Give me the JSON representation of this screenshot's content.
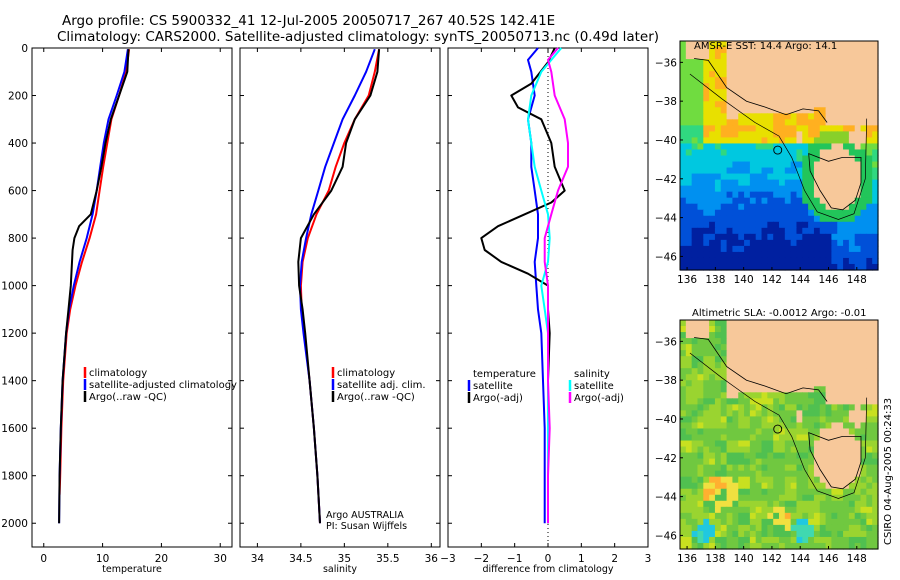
{
  "title": {
    "line1": "Argo profile: CS 5900332_41 12-Jul-2005 20050717_267 40.52S 142.41E",
    "line2": "Climatology: CARS2000. Satellite-adjusted climatology: synTS_20050713.nc (0.49d later)"
  },
  "chart_data": [
    {
      "type": "line",
      "name": "temperature-profile",
      "xlabel": "temperature",
      "ylabel": "",
      "xlim": [
        -2,
        32
      ],
      "ylim": [
        2100,
        0
      ],
      "xticks": [
        0,
        10,
        20,
        30
      ],
      "yticks": [
        0,
        200,
        400,
        600,
        800,
        1000,
        1200,
        1400,
        1600,
        1800,
        2000
      ],
      "legend": [
        "climatology",
        "satellite-adjusted climatology",
        "Argo(..raw -QC)"
      ],
      "series": [
        {
          "name": "climatology",
          "color": "#ff0000",
          "y": [
            5,
            100,
            200,
            300,
            400,
            500,
            600,
            700,
            800,
            900,
            1000,
            1100,
            1200,
            1400,
            1600,
            1800,
            1880
          ],
          "x": [
            14.5,
            14.0,
            12.8,
            11.5,
            10.8,
            10.1,
            9.5,
            8.9,
            7.8,
            6.5,
            5.4,
            4.5,
            3.9,
            3.3,
            3.0,
            2.8,
            2.7
          ]
        },
        {
          "name": "satellite-adjusted climatology",
          "color": "#0000ff",
          "y": [
            5,
            100,
            200,
            300,
            400,
            500,
            600,
            700,
            800,
            900,
            1000,
            1100,
            1200,
            1400,
            1600,
            1800,
            2000
          ],
          "x": [
            14.3,
            13.7,
            12.4,
            11.0,
            10.2,
            9.6,
            9.0,
            8.3,
            7.3,
            6.1,
            5.1,
            4.3,
            3.8,
            3.2,
            2.9,
            2.7,
            2.6
          ]
        },
        {
          "name": "Argo(..raw -QC)",
          "color": "#000000",
          "y": [
            5,
            50,
            100,
            200,
            300,
            400,
            500,
            600,
            700,
            750,
            800,
            850,
            900,
            1000,
            1100,
            1200,
            1400,
            1600,
            1800,
            2000
          ],
          "x": [
            14.4,
            14.3,
            14.2,
            12.8,
            11.4,
            10.5,
            9.8,
            9.0,
            8.0,
            6.0,
            5.2,
            4.9,
            4.8,
            4.6,
            4.2,
            3.8,
            3.2,
            2.9,
            2.7,
            2.6
          ]
        }
      ]
    },
    {
      "type": "line",
      "name": "salinity-profile",
      "xlabel": "salinity",
      "ylabel": "",
      "xlim": [
        33.8,
        36.1
      ],
      "ylim": [
        2100,
        0
      ],
      "xticks": [
        34,
        34.5,
        35,
        35.5,
        36
      ],
      "yticks": [
        0,
        200,
        400,
        600,
        800,
        1000,
        1200,
        1400,
        1600,
        1800,
        2000
      ],
      "legend": [
        "climatology",
        "satellite adj. clim.",
        "Argo(..raw -QC)"
      ],
      "annotations": [
        "Argo AUSTRALIA",
        "PI: Susan Wijffels"
      ],
      "series": [
        {
          "name": "climatology",
          "color": "#ff0000",
          "y": [
            5,
            100,
            200,
            300,
            400,
            500,
            600,
            700,
            800,
            900,
            1000,
            1100,
            1200,
            1400,
            1600,
            1800,
            2000
          ],
          "x": [
            35.4,
            35.35,
            35.28,
            35.12,
            35.0,
            34.9,
            34.82,
            34.68,
            34.58,
            34.52,
            34.5,
            34.51,
            34.54,
            34.6,
            34.65,
            34.69,
            34.72
          ]
        },
        {
          "name": "satellite adj. clim.",
          "color": "#0000ff",
          "y": [
            5,
            100,
            200,
            300,
            400,
            500,
            600,
            700,
            800,
            900,
            1000,
            1100,
            1200,
            1400,
            1600,
            1800,
            2000
          ],
          "x": [
            35.35,
            35.25,
            35.12,
            34.98,
            34.88,
            34.78,
            34.7,
            34.62,
            34.56,
            34.51,
            34.49,
            34.5,
            34.53,
            34.6,
            34.65,
            34.69,
            34.72
          ]
        },
        {
          "name": "Argo(..raw -QC)",
          "color": "#000000",
          "y": [
            5,
            100,
            200,
            300,
            400,
            500,
            600,
            700,
            800,
            900,
            1000,
            1100,
            1200,
            1400,
            1600,
            1800,
            2000
          ],
          "x": [
            35.4,
            35.38,
            35.3,
            35.12,
            35.02,
            34.98,
            34.85,
            34.65,
            34.5,
            34.47,
            34.48,
            34.52,
            34.55,
            34.6,
            34.65,
            34.69,
            34.72
          ]
        }
      ]
    },
    {
      "type": "line",
      "name": "difference-profile",
      "xlabel": "difference from climatology",
      "ylabel": "",
      "xlim": [
        -3,
        3
      ],
      "ylim": [
        2100,
        0
      ],
      "xticks": [
        -3,
        -2,
        -1,
        0,
        1,
        2,
        3
      ],
      "yticks": [
        0,
        200,
        400,
        600,
        800,
        1000,
        1200,
        1400,
        1600,
        1800,
        2000
      ],
      "legend": [
        "temperature",
        "satellite",
        "Argo(-adj)",
        "salinity",
        "satellite",
        "Argo(-adj)"
      ],
      "series": [
        {
          "name": "temperature satellite",
          "color": "#0000ff",
          "y": [
            0,
            50,
            100,
            200,
            300,
            400,
            500,
            600,
            700,
            800,
            900,
            1000,
            1100,
            1200,
            1400,
            1600,
            1800,
            2000
          ],
          "x": [
            -0.3,
            -0.6,
            -0.5,
            -0.4,
            -0.6,
            -0.5,
            -0.5,
            -0.4,
            -0.3,
            -0.3,
            -0.4,
            -0.35,
            -0.3,
            -0.2,
            -0.15,
            -0.1,
            -0.1,
            -0.1
          ]
        },
        {
          "name": "temperature Argo(-adj)",
          "color": "#000000",
          "y": [
            0,
            60,
            150,
            200,
            250,
            300,
            400,
            500,
            600,
            650,
            700,
            750,
            800,
            850,
            900,
            950,
            1000,
            1100,
            1200,
            1400,
            1600,
            1800,
            2000
          ],
          "x": [
            0.2,
            0.0,
            -0.5,
            -1.1,
            -0.9,
            -0.2,
            0.1,
            0.2,
            0.5,
            0.1,
            -0.7,
            -1.5,
            -2.0,
            -1.9,
            -1.4,
            -0.6,
            0.0,
            0.0,
            0.05,
            0.0,
            0.0,
            0.0,
            0.0
          ]
        },
        {
          "name": "salinity satellite",
          "color": "#00ffff",
          "y": [
            0,
            100,
            200,
            300,
            400,
            500,
            600,
            700,
            800,
            900,
            1000,
            1100,
            1200,
            1400,
            1600,
            1800,
            2000
          ],
          "x": [
            0.4,
            -0.2,
            -0.5,
            -0.6,
            -0.5,
            -0.4,
            -0.2,
            0.0,
            0.05,
            0.0,
            -0.2,
            -0.1,
            0.0,
            0.0,
            0.0,
            0.0,
            0.0
          ]
        },
        {
          "name": "salinity Argo(-adj)",
          "color": "#ff00ff",
          "y": [
            0,
            50,
            100,
            200,
            300,
            400,
            500,
            600,
            700,
            800,
            900,
            1000,
            1100,
            1200,
            1400,
            1600,
            1800,
            2000
          ],
          "x": [
            0.3,
            0.0,
            0.1,
            0.2,
            0.5,
            0.6,
            0.6,
            0.3,
            0.1,
            -0.1,
            -0.1,
            0.0,
            0.0,
            0.0,
            0.0,
            0.05,
            0.0,
            0.0
          ]
        }
      ]
    },
    {
      "type": "heatmap",
      "name": "sst-map",
      "title": "AMSR-E SST: 14.4 Argo: 14.1",
      "xlim": [
        135.5,
        149.5
      ],
      "ylim": [
        -46.7,
        -34.9
      ],
      "xticks": [
        136,
        138,
        140,
        142,
        144,
        146,
        148
      ],
      "xtick_labels": [
        "136",
        "138",
        "140",
        "142",
        "144",
        "146",
        "148"
      ],
      "yticks": [
        -36,
        -38,
        -40,
        -42,
        -44,
        -46
      ],
      "ytick_labels": [
        "-36",
        "-38",
        "-40",
        "-42",
        "-44",
        "-46"
      ],
      "marker": {
        "lon": 142.41,
        "lat": -40.52
      }
    },
    {
      "type": "heatmap",
      "name": "sla-map",
      "title": "Altimetric SLA: -0.0012 Argo: -0.01",
      "xlim": [
        135.5,
        149.5
      ],
      "ylim": [
        -46.7,
        -34.9
      ],
      "xticks": [
        136,
        138,
        140,
        142,
        144,
        146,
        148
      ],
      "xtick_labels": [
        "136",
        "138",
        "140",
        "142",
        "144",
        "146",
        "148"
      ],
      "yticks": [
        -36,
        -38,
        -40,
        -42,
        -44,
        -46
      ],
      "ytick_labels": [
        "-36",
        "-38",
        "-40",
        "-42",
        "-44",
        "-46"
      ],
      "marker": {
        "lon": 142.41,
        "lat": -40.52
      }
    }
  ],
  "stamp": "CSIRO 04-Aug-2005 00:24:33",
  "colors": {
    "land": "#f7c89a",
    "coast": "#000000"
  }
}
